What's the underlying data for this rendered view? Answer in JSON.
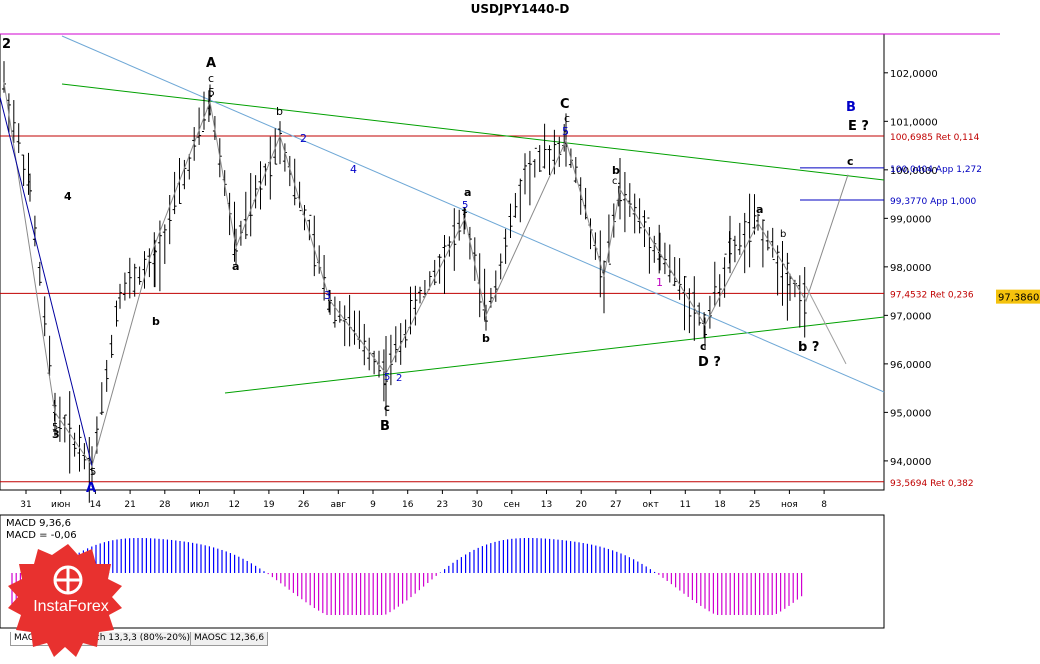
{
  "chart_title": "USDJPY1440-D",
  "colors": {
    "axis": "#000000",
    "candle": "#000000",
    "grid_line": "#c00000",
    "extension_line": "#0000c0",
    "trend_green": "#00a000",
    "trend_blue": "#6fa8d6",
    "macd_pos": "#0000ff",
    "macd_neg": "#d000d0",
    "logo_red": "#e8312f",
    "wave_black": "#000000",
    "wave_blue": "#0000c8",
    "wave_magenta": "#c000c0"
  },
  "icons": {
    "logo": "instaforex-logo-icon"
  },
  "chart_data": {
    "type": "candlestick",
    "symbol": "USDJPY",
    "timeframe": "D1",
    "ylim": [
      93.4,
      102.8
    ],
    "y_ticks": [
      "102,0000",
      "101,0000",
      "100,0000",
      "99,0000",
      "98,0000",
      "97,0000",
      "96,0000",
      "95,0000",
      "94,0000"
    ],
    "x_tick_labels": [
      "31",
      "июн",
      "14",
      "21",
      "28",
      "июл",
      "12",
      "19",
      "26",
      "авг",
      "9",
      "16",
      "23",
      "30",
      "сен",
      "13",
      "20",
      "27",
      "окт",
      "11",
      "18",
      "25",
      "ноя",
      "8"
    ],
    "current_price": "97,3860",
    "levels": [
      {
        "price": 100.6985,
        "label": "100,6985 Ret 0,114",
        "kind": "ret"
      },
      {
        "price": 100.0404,
        "label": "100,0404 App 1,272",
        "kind": "app"
      },
      {
        "price": 99.377,
        "label": "99,3770 App 1,000",
        "kind": "app"
      },
      {
        "price": 97.4532,
        "label": "97,4532 Ret 0,236",
        "kind": "ret"
      },
      {
        "price": 93.5694,
        "label": "93,5694 Ret 0,382",
        "kind": "ret"
      }
    ],
    "wave_labels": [
      {
        "text": "2",
        "color": "black",
        "bold": true
      },
      {
        "text": "A",
        "color": "black",
        "bold": true
      },
      {
        "text": "c",
        "color": "black"
      },
      {
        "text": "5",
        "color": "black"
      },
      {
        "text": "C",
        "color": "black",
        "bold": true
      },
      {
        "text": "B",
        "color": "blue",
        "bold": true
      },
      {
        "text": "E ?",
        "color": "black",
        "bold": true
      },
      {
        "text": "b",
        "color": "black"
      },
      {
        "text": "2",
        "color": "blue"
      },
      {
        "text": "4",
        "color": "blue"
      },
      {
        "text": "3",
        "color": "blue"
      },
      {
        "text": "D ?",
        "color": "black",
        "bold": true
      },
      {
        "text": "b ?",
        "color": "black",
        "bold": true
      },
      {
        "text": "B",
        "color": "black",
        "bold": true
      },
      {
        "text": "A",
        "color": "blue",
        "bold": true
      }
    ],
    "indicators": [
      {
        "name": "MACD 9,36,6",
        "value_label": "MACD = -0,06"
      }
    ]
  },
  "tabs": [
    {
      "label": "MACD 9,36,6",
      "active": true
    },
    {
      "label": "Stoch 13,3,3 (80%-20%)",
      "active": false
    },
    {
      "label": "MAOSC 12,36,6",
      "active": false
    }
  ],
  "logo_text": "InstaForex"
}
